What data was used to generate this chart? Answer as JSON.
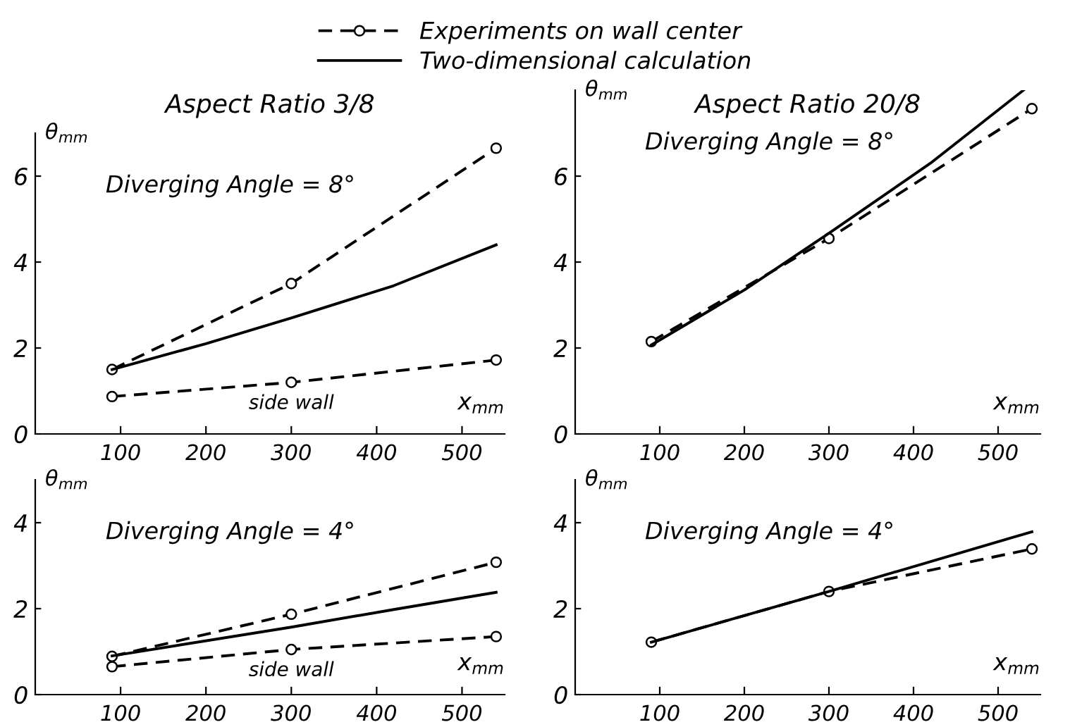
{
  "chart_data": [
    {
      "type": "line",
      "title": "Aspect Ratio 3/8",
      "subtitle": "Diverging Angle = 8°",
      "xlabel": "x$_{mm}$",
      "ylabel": "θ$_{mm}$",
      "xlim": [
        0,
        550
      ],
      "ylim": [
        0,
        7
      ],
      "xticks": [
        100,
        200,
        300,
        400,
        500
      ],
      "yticks": [
        0,
        2,
        4,
        6
      ],
      "grid": false,
      "legend": "top",
      "series": [
        {
          "name": "Experiments on wall center",
          "color": "#000000",
          "marker": "circle",
          "line_style": "dashed",
          "x": [
            90,
            300,
            540
          ],
          "values": [
            1.5,
            3.5,
            6.65
          ]
        },
        {
          "name": "Two-dimensional calculation",
          "color": "#000000",
          "marker": "none",
          "line_style": "solid",
          "x": [
            90,
            200,
            300,
            420,
            540
          ],
          "values": [
            1.5,
            2.1,
            2.7,
            3.45,
            4.4
          ]
        },
        {
          "color": "#000000",
          "marker": "circle",
          "line_style": "dashed",
          "x": [
            90,
            300,
            540
          ],
          "values": [
            0.87,
            1.2,
            1.72
          ]
        }
      ],
      "annotations": [
        {
          "text": "side wall",
          "x": 300,
          "y": 1.2
        }
      ]
    },
    {
      "type": "line",
      "title": "Aspect Ratio 20/8",
      "subtitle": "Diverging Angle = 8°",
      "xlabel": "x$_{mm}$",
      "ylabel": "θ$_{mm}$",
      "xlim": [
        0,
        550
      ],
      "ylim": [
        0,
        8
      ],
      "xticks": [
        100,
        200,
        300,
        400,
        500
      ],
      "yticks": [
        0,
        2,
        4,
        6
      ],
      "grid": false,
      "series": [
        {
          "color": "#000000",
          "marker": "circle",
          "line_style": "dashed",
          "x": [
            90,
            300,
            540
          ],
          "values": [
            2.15,
            4.55,
            7.57
          ]
        },
        {
          "color": "#000000",
          "marker": "none",
          "line_style": "solid",
          "x": [
            90,
            200,
            300,
            420,
            530
          ],
          "values": [
            2.07,
            3.35,
            4.67,
            6.3,
            8.0
          ]
        }
      ]
    },
    {
      "type": "line",
      "subtitle": "Diverging Angle = 4°",
      "xlabel": "x$_{mm}$",
      "ylabel": "θ$_{mm}$",
      "xlim": [
        0,
        550
      ],
      "ylim": [
        0,
        5
      ],
      "xticks": [
        100,
        200,
        300,
        400,
        500
      ],
      "yticks": [
        0,
        2,
        4
      ],
      "grid": false,
      "series": [
        {
          "color": "#000000",
          "marker": "circle",
          "line_style": "dashed",
          "x": [
            90,
            300,
            540
          ],
          "values": [
            0.89,
            1.87,
            3.08
          ]
        },
        {
          "color": "#000000",
          "marker": "none",
          "line_style": "solid",
          "x": [
            90,
            300,
            420,
            540
          ],
          "values": [
            0.9,
            1.57,
            1.98,
            2.38
          ]
        },
        {
          "color": "#000000",
          "marker": "circle",
          "line_style": "dashed",
          "x": [
            90,
            300,
            540
          ],
          "values": [
            0.65,
            1.05,
            1.35
          ]
        }
      ],
      "annotations": [
        {
          "text": "side wall",
          "x": 300,
          "y": 1.05
        }
      ]
    },
    {
      "type": "line",
      "subtitle": "Diverging Angle = 4°",
      "xlabel": "x$_{mm}$",
      "ylabel": "θ$_{mm}$",
      "xlim": [
        0,
        550
      ],
      "ylim": [
        0,
        5
      ],
      "xticks": [
        100,
        200,
        300,
        400,
        500
      ],
      "yticks": [
        0,
        2,
        4
      ],
      "grid": false,
      "series": [
        {
          "color": "#000000",
          "marker": "circle",
          "line_style": "dashed",
          "x": [
            90,
            300,
            540
          ],
          "values": [
            1.22,
            2.4,
            3.39
          ]
        },
        {
          "color": "#000000",
          "marker": "none",
          "line_style": "solid",
          "x": [
            90,
            300,
            540
          ],
          "values": [
            1.22,
            2.4,
            3.79
          ]
        }
      ]
    }
  ]
}
